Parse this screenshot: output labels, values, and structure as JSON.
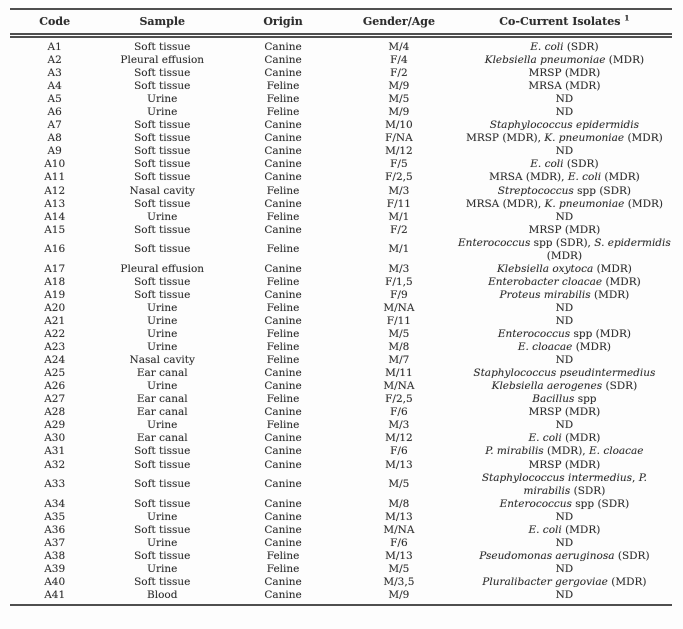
{
  "colors": {
    "rule": "#4f4f4f",
    "text": "#2e2e2e",
    "background": "#fdfdfd"
  },
  "table": {
    "headers": [
      {
        "label": "Code",
        "sup": ""
      },
      {
        "label": "Sample",
        "sup": ""
      },
      {
        "label": "Origin",
        "sup": ""
      },
      {
        "label": "Gender/Age",
        "sup": ""
      },
      {
        "label": "Co-Current Isolates",
        "sup": "1"
      }
    ],
    "rows": [
      {
        "code": "A1",
        "sample": "Soft tissue",
        "origin": "Canine",
        "gender_age": "M/4",
        "isolates": [
          [
            "E. coli",
            1
          ],
          [
            " (SDR)",
            0
          ]
        ]
      },
      {
        "code": "A2",
        "sample": "Pleural effusion",
        "origin": "Canine",
        "gender_age": "F/4",
        "isolates": [
          [
            "Klebsiella pneumoniae",
            1
          ],
          [
            " (MDR)",
            0
          ]
        ]
      },
      {
        "code": "A3",
        "sample": "Soft tissue",
        "origin": "Canine",
        "gender_age": "F/2",
        "isolates": [
          [
            "MRSP (MDR)",
            0
          ]
        ]
      },
      {
        "code": "A4",
        "sample": "Soft tissue",
        "origin": "Feline",
        "gender_age": "M/9",
        "isolates": [
          [
            "MRSA (MDR)",
            0
          ]
        ]
      },
      {
        "code": "A5",
        "sample": "Urine",
        "origin": "Feline",
        "gender_age": "M/5",
        "isolates": [
          [
            "ND",
            0
          ]
        ]
      },
      {
        "code": "A6",
        "sample": "Urine",
        "origin": "Feline",
        "gender_age": "M/9",
        "isolates": [
          [
            "ND",
            0
          ]
        ]
      },
      {
        "code": "A7",
        "sample": "Soft tissue",
        "origin": "Canine",
        "gender_age": "M/10",
        "isolates": [
          [
            "Staphylococcus epidermidis",
            1
          ]
        ]
      },
      {
        "code": "A8",
        "sample": "Soft tissue",
        "origin": "Canine",
        "gender_age": "F/NA",
        "isolates": [
          [
            "MRSP (MDR), ",
            0
          ],
          [
            "K. pneumoniae",
            1
          ],
          [
            " (MDR)",
            0
          ]
        ]
      },
      {
        "code": "A9",
        "sample": "Soft tissue",
        "origin": "Canine",
        "gender_age": "M/12",
        "isolates": [
          [
            "ND",
            0
          ]
        ]
      },
      {
        "code": "A10",
        "sample": "Soft tissue",
        "origin": "Canine",
        "gender_age": "F/5",
        "isolates": [
          [
            "E. coli",
            1
          ],
          [
            " (SDR)",
            0
          ]
        ]
      },
      {
        "code": "A11",
        "sample": "Soft tissue",
        "origin": "Canine",
        "gender_age": "F/2,5",
        "isolates": [
          [
            "MRSA (MDR), ",
            0
          ],
          [
            "E. coli",
            1
          ],
          [
            " (MDR)",
            0
          ]
        ]
      },
      {
        "code": "A12",
        "sample": "Nasal cavity",
        "origin": "Feline",
        "gender_age": "M/3",
        "isolates": [
          [
            "Streptococcus",
            1
          ],
          [
            " spp (SDR)",
            0
          ]
        ]
      },
      {
        "code": "A13",
        "sample": "Soft tissue",
        "origin": "Canine",
        "gender_age": "F/11",
        "isolates": [
          [
            "MRSA (MDR), ",
            0
          ],
          [
            "K. pneumoniae",
            1
          ],
          [
            " (MDR)",
            0
          ]
        ]
      },
      {
        "code": "A14",
        "sample": "Urine",
        "origin": "Feline",
        "gender_age": "M/1",
        "isolates": [
          [
            "ND",
            0
          ]
        ]
      },
      {
        "code": "A15",
        "sample": "Soft tissue",
        "origin": "Canine",
        "gender_age": "F/2",
        "isolates": [
          [
            "MRSP (MDR)",
            0
          ]
        ]
      },
      {
        "code": "A16",
        "sample": "Soft tissue",
        "origin": "Feline",
        "gender_age": "M/1",
        "isolates": [
          [
            "Enterococcus",
            1
          ],
          [
            " spp (SDR), ",
            0
          ],
          [
            "S. epidermidis",
            1
          ],
          [
            " (MDR)",
            0
          ]
        ]
      },
      {
        "code": "A17",
        "sample": "Pleural effusion",
        "origin": "Canine",
        "gender_age": "M/3",
        "isolates": [
          [
            "Klebsiella oxytoca",
            1
          ],
          [
            " (MDR)",
            0
          ]
        ]
      },
      {
        "code": "A18",
        "sample": "Soft tissue",
        "origin": "Feline",
        "gender_age": "F/1,5",
        "isolates": [
          [
            "Enterobacter cloacae",
            1
          ],
          [
            " (MDR)",
            0
          ]
        ]
      },
      {
        "code": "A19",
        "sample": "Soft tissue",
        "origin": "Canine",
        "gender_age": "F/9",
        "isolates": [
          [
            "Proteus mirabilis",
            1
          ],
          [
            " (MDR)",
            0
          ]
        ]
      },
      {
        "code": "A20",
        "sample": "Urine",
        "origin": "Feline",
        "gender_age": "M/NA",
        "isolates": [
          [
            "ND",
            0
          ]
        ]
      },
      {
        "code": "A21",
        "sample": "Urine",
        "origin": "Canine",
        "gender_age": "F/11",
        "isolates": [
          [
            "ND",
            0
          ]
        ]
      },
      {
        "code": "A22",
        "sample": "Urine",
        "origin": "Feline",
        "gender_age": "M/5",
        "isolates": [
          [
            "Enterococcus",
            1
          ],
          [
            " spp (MDR)",
            0
          ]
        ]
      },
      {
        "code": "A23",
        "sample": "Urine",
        "origin": "Feline",
        "gender_age": "M/8",
        "isolates": [
          [
            "E. cloacae",
            1
          ],
          [
            " (MDR)",
            0
          ]
        ]
      },
      {
        "code": "A24",
        "sample": "Nasal cavity",
        "origin": "Feline",
        "gender_age": "M/7",
        "isolates": [
          [
            "ND",
            0
          ]
        ]
      },
      {
        "code": "A25",
        "sample": "Ear canal",
        "origin": "Canine",
        "gender_age": "M/11",
        "isolates": [
          [
            "Staphylococcus pseudintermedius",
            1
          ]
        ]
      },
      {
        "code": "A26",
        "sample": "Urine",
        "origin": "Canine",
        "gender_age": "M/NA",
        "isolates": [
          [
            "Klebsiella aerogenes",
            1
          ],
          [
            " (SDR)",
            0
          ]
        ]
      },
      {
        "code": "A27",
        "sample": "Ear canal",
        "origin": "Feline",
        "gender_age": "F/2,5",
        "isolates": [
          [
            "Bacillus",
            1
          ],
          [
            " spp",
            0
          ]
        ]
      },
      {
        "code": "A28",
        "sample": "Ear canal",
        "origin": "Canine",
        "gender_age": "F/6",
        "isolates": [
          [
            "MRSP (MDR)",
            0
          ]
        ]
      },
      {
        "code": "A29",
        "sample": "Urine",
        "origin": "Feline",
        "gender_age": "M/3",
        "isolates": [
          [
            "ND",
            0
          ]
        ]
      },
      {
        "code": "A30",
        "sample": "Ear canal",
        "origin": "Canine",
        "gender_age": "M/12",
        "isolates": [
          [
            "E. coli",
            1
          ],
          [
            " (MDR)",
            0
          ]
        ]
      },
      {
        "code": "A31",
        "sample": "Soft tissue",
        "origin": "Canine",
        "gender_age": "F/6",
        "isolates": [
          [
            "P. mirabilis",
            1
          ],
          [
            " (MDR), ",
            0
          ],
          [
            "E. cloacae",
            1
          ]
        ]
      },
      {
        "code": "A32",
        "sample": "Soft tissue",
        "origin": "Canine",
        "gender_age": "M/13",
        "isolates": [
          [
            "MRSP (MDR)",
            0
          ]
        ]
      },
      {
        "code": "A33",
        "sample": "Soft tissue",
        "origin": "Canine",
        "gender_age": "M/5",
        "isolates": [
          [
            "Staphylococcus intermedius",
            1
          ],
          [
            ", ",
            0
          ],
          [
            "P. mirabilis",
            1
          ],
          [
            " (SDR)",
            0
          ]
        ]
      },
      {
        "code": "A34",
        "sample": "Soft tissue",
        "origin": "Canine",
        "gender_age": "M/8",
        "isolates": [
          [
            "Enterococcus",
            1
          ],
          [
            " spp (SDR)",
            0
          ]
        ]
      },
      {
        "code": "A35",
        "sample": "Urine",
        "origin": "Canine",
        "gender_age": "M/13",
        "isolates": [
          [
            "ND",
            0
          ]
        ]
      },
      {
        "code": "A36",
        "sample": "Soft tissue",
        "origin": "Canine",
        "gender_age": "M/NA",
        "isolates": [
          [
            "E. coli",
            1
          ],
          [
            " (MDR)",
            0
          ]
        ]
      },
      {
        "code": "A37",
        "sample": "Urine",
        "origin": "Canine",
        "gender_age": "F/6",
        "isolates": [
          [
            "ND",
            0
          ]
        ]
      },
      {
        "code": "A38",
        "sample": "Soft tissue",
        "origin": "Feline",
        "gender_age": "M/13",
        "isolates": [
          [
            "Pseudomonas aeruginosa",
            1
          ],
          [
            " (SDR)",
            0
          ]
        ]
      },
      {
        "code": "A39",
        "sample": "Urine",
        "origin": "Feline",
        "gender_age": "M/5",
        "isolates": [
          [
            "ND",
            0
          ]
        ]
      },
      {
        "code": "A40",
        "sample": "Soft tissue",
        "origin": "Canine",
        "gender_age": "M/3,5",
        "isolates": [
          [
            "Pluralibacter gergoviae",
            1
          ],
          [
            " (MDR)",
            0
          ]
        ]
      },
      {
        "code": "A41",
        "sample": "Blood",
        "origin": "Canine",
        "gender_age": "M/9",
        "isolates": [
          [
            "ND",
            0
          ]
        ]
      }
    ]
  }
}
